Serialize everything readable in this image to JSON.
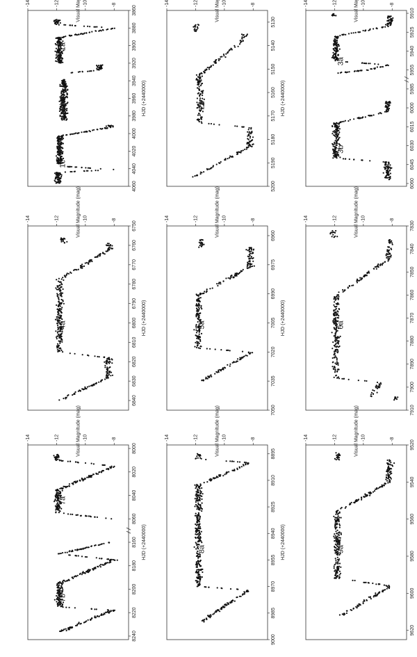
{
  "figure": {
    "rotation": "90deg-counterclockwise",
    "axis_title_x": "HJD  (+2440000)",
    "axis_title_y": "Visual Magnitude   (mag)"
  },
  "chart_data": [
    {
      "type": "scatter",
      "panel_row": 1,
      "panel_col": 1,
      "xlim": [
        3860,
        4060
      ],
      "ylim": [
        -14,
        -7
      ],
      "y_inverted": true,
      "x_ticks": [
        3860,
        3880,
        3900,
        3920,
        3940,
        3960,
        3980,
        4000,
        4020,
        4040,
        4060
      ],
      "y_ticks": [
        -8,
        -10,
        -12,
        -14
      ],
      "annotations": [
        "1a",
        "1b",
        "1c"
      ],
      "segments": [
        {
          "x_start": 3870,
          "x_end": 3876,
          "kind": "flat",
          "y": -12
        },
        {
          "x_start": 3876,
          "x_end": 3880,
          "kind": "rise",
          "y_from": -12,
          "y_to": -8
        },
        {
          "x_start": 3880,
          "x_end": 3891,
          "kind": "decline",
          "y_from": -8,
          "y_to": -11.8
        },
        {
          "x_start": 3891,
          "x_end": 3920,
          "kind": "flat",
          "y": -11.8
        },
        {
          "x_start": 3922,
          "x_end": 3928,
          "kind": "flat",
          "y": -9
        },
        {
          "x_start": 3928,
          "x_end": 3931,
          "kind": "decline",
          "y_from": -9,
          "y_to": -11.2
        },
        {
          "x_start": 3938,
          "x_end": 3985,
          "kind": "flat",
          "y": -11.5
        },
        {
          "x_start": 3990,
          "x_end": 3993,
          "kind": "flat",
          "y": -8.3
        },
        {
          "x_start": 3993,
          "x_end": 4003,
          "kind": "decline",
          "y_from": -8.3,
          "y_to": -11.8
        },
        {
          "x_start": 4003,
          "x_end": 4035,
          "kind": "flat",
          "y": -11.8
        },
        {
          "x_start": 4037,
          "x_end": 4041,
          "kind": "rise",
          "y_from": -11.8,
          "y_to": -8
        },
        {
          "x_start": 4041,
          "x_end": 4044,
          "kind": "decline",
          "y_from": -8,
          "y_to": -11.8
        },
        {
          "x_start": 4044,
          "x_end": 4057,
          "kind": "flat",
          "y": -11.9
        }
      ]
    },
    {
      "type": "scatter",
      "panel_row": 1,
      "panel_col": 2,
      "xlim": [
        5125,
        5200
      ],
      "ylim": [
        -14,
        -7
      ],
      "y_inverted": true,
      "x_ticks": [
        5130,
        5140,
        5150,
        5160,
        5170,
        5180,
        5190,
        5200
      ],
      "y_ticks": [
        -8,
        -10,
        -12,
        -14
      ],
      "annotations": [
        "2a"
      ],
      "segments": [
        {
          "x_start": 5131,
          "x_end": 5134,
          "kind": "flat",
          "y": -12
        },
        {
          "x_start": 5135,
          "x_end": 5137,
          "kind": "flat",
          "y": -8.6
        },
        {
          "x_start": 5137,
          "x_end": 5152,
          "kind": "decline",
          "y_from": -8.6,
          "y_to": -11.6
        },
        {
          "x_start": 5152,
          "x_end": 5173,
          "kind": "flat",
          "y": -11.7
        },
        {
          "x_start": 5173,
          "x_end": 5175,
          "kind": "rise",
          "y_from": -11.7,
          "y_to": -8.1
        },
        {
          "x_start": 5175,
          "x_end": 5183,
          "kind": "flat",
          "y": -8.2
        },
        {
          "x_start": 5183,
          "x_end": 5196,
          "kind": "decline",
          "y_from": -8.2,
          "y_to": -12.1
        }
      ]
    },
    {
      "type": "scatter",
      "panel_row": 1,
      "panel_col": 3,
      "xlim": [
        5905,
        6065
      ],
      "ylim": [
        -14,
        -7
      ],
      "y_inverted": true,
      "x_ticks": [
        5910,
        5925,
        5940,
        5955,
        5985,
        6000,
        6015,
        6030,
        6045,
        6060
      ],
      "x_tick_labels": [
        "5910",
        "5925",
        "5940",
        "5955",
        "5985",
        "6000",
        "6015",
        "6030",
        "6045",
        "6060"
      ],
      "y_ticks": [
        -8,
        -10,
        -12,
        -14
      ],
      "axis_break_between": [
        "5955",
        "5985"
      ],
      "annotations": [
        "3a",
        "3b"
      ],
      "segments": [
        {
          "x_start": 5910,
          "x_end": 5912,
          "kind": "flat",
          "y": -12
        },
        {
          "x_start": 5912,
          "x_end": 5920,
          "kind": "flat",
          "y": -8.2
        },
        {
          "x_start": 5920,
          "x_end": 5928,
          "kind": "decline",
          "y_from": -8.2,
          "y_to": -11.8
        },
        {
          "x_start": 5928,
          "x_end": 5948,
          "kind": "flat",
          "y": -11.9
        },
        {
          "x_start": 5948,
          "x_end": 5951,
          "kind": "rise",
          "y_from": -11.9,
          "y_to": -8.2
        },
        {
          "x_start": 5951,
          "x_end": 5960,
          "kind": "decline",
          "y_from": -8.2,
          "y_to": -11.8
        },
        {
          "x_start": 5995,
          "x_end": 6003,
          "kind": "flat",
          "y": -8.3
        },
        {
          "x_start": 6003,
          "x_end": 6012,
          "kind": "decline",
          "y_from": -8.3,
          "y_to": -11.8
        },
        {
          "x_start": 6012,
          "x_end": 6040,
          "kind": "flat",
          "y": -11.9
        },
        {
          "x_start": 6040,
          "x_end": 6043,
          "kind": "rise",
          "y_from": -11.9,
          "y_to": -8.3
        },
        {
          "x_start": 6043,
          "x_end": 6057,
          "kind": "flat",
          "y": -8.3
        }
      ]
    },
    {
      "type": "scatter",
      "panel_row": 2,
      "panel_col": 1,
      "xlim": [
        6750,
        6845
      ],
      "ylim": [
        -14,
        -7
      ],
      "y_inverted": true,
      "x_ticks": [
        6750,
        6760,
        6770,
        6780,
        6790,
        6800,
        6810,
        6820,
        6830,
        6840
      ],
      "y_ticks": [
        -8,
        -10,
        -12,
        -14
      ],
      "annotations": [
        "4a"
      ],
      "segments": [
        {
          "x_start": 6756,
          "x_end": 6759,
          "kind": "flat",
          "y": -11.5
        },
        {
          "x_start": 6759,
          "x_end": 6762,
          "kind": "flat",
          "y": -8.3
        },
        {
          "x_start": 6762,
          "x_end": 6777,
          "kind": "decline",
          "y_from": -8.3,
          "y_to": -11.6
        },
        {
          "x_start": 6777,
          "x_end": 6815,
          "kind": "flat",
          "y": -11.8
        },
        {
          "x_start": 6815,
          "x_end": 6818,
          "kind": "rise",
          "y_from": -11.8,
          "y_to": -8.4
        },
        {
          "x_start": 6818,
          "x_end": 6828,
          "kind": "flat",
          "y": -8.4
        },
        {
          "x_start": 6828,
          "x_end": 6840,
          "kind": "decline",
          "y_from": -8.4,
          "y_to": -11.8
        }
      ]
    },
    {
      "type": "scatter",
      "panel_row": 2,
      "panel_col": 2,
      "xlim": [
        6955,
        7050
      ],
      "ylim": [
        -14,
        -7
      ],
      "y_inverted": true,
      "x_ticks": [
        6960,
        6975,
        6990,
        7005,
        7020,
        7035,
        7050
      ],
      "y_ticks": [
        -8,
        -10,
        -12,
        -14
      ],
      "annotations": [
        "5a"
      ],
      "segments": [
        {
          "x_start": 6962,
          "x_end": 6966,
          "kind": "flat",
          "y": -11.6
        },
        {
          "x_start": 6966,
          "x_end": 6976,
          "kind": "flat",
          "y": -8.2
        },
        {
          "x_start": 6976,
          "x_end": 6990,
          "kind": "decline",
          "y_from": -8.2,
          "y_to": -11.6
        },
        {
          "x_start": 6990,
          "x_end": 7018,
          "kind": "flat",
          "y": -11.8
        },
        {
          "x_start": 7018,
          "x_end": 7020,
          "kind": "rise",
          "y_from": -11.8,
          "y_to": -8.1
        },
        {
          "x_start": 7020,
          "x_end": 7035,
          "kind": "decline",
          "y_from": -8.1,
          "y_to": -11.6
        }
      ]
    },
    {
      "type": "scatter",
      "panel_row": 2,
      "panel_col": 3,
      "xlim": [
        7830,
        7910
      ],
      "ylim": [
        -14,
        -7
      ],
      "y_inverted": true,
      "x_ticks": [
        7830,
        7840,
        7850,
        7860,
        7870,
        7880,
        7890,
        7900,
        7910
      ],
      "y_ticks": [
        -8,
        -10,
        -12,
        -14
      ],
      "annotations": [
        "6a"
      ],
      "segments": [
        {
          "x_start": 7832,
          "x_end": 7835,
          "kind": "flat",
          "y": -12.1
        },
        {
          "x_start": 7836,
          "x_end": 7844,
          "kind": "flat",
          "y": -8.2
        },
        {
          "x_start": 7844,
          "x_end": 7860,
          "kind": "decline",
          "y_from": -8.2,
          "y_to": -11.8
        },
        {
          "x_start": 7860,
          "x_end": 7896,
          "kind": "flat",
          "y": -11.9
        },
        {
          "x_start": 7896,
          "x_end": 7898,
          "kind": "rise",
          "y_from": -11.9,
          "y_to": -8.8
        },
        {
          "x_start": 7898,
          "x_end": 7904,
          "kind": "decline",
          "y_from": -8.8,
          "y_to": -9.5
        },
        {
          "x_start": 7904,
          "x_end": 7906,
          "kind": "flat",
          "y": -7.8
        }
      ]
    },
    {
      "type": "scatter",
      "panel_row": 3,
      "panel_col": 1,
      "xlim": [
        8000,
        8240
      ],
      "ylim": [
        -14,
        -7
      ],
      "y_inverted": true,
      "x_ticks": [
        8000,
        8020,
        8040,
        8060,
        8160,
        8180,
        8200,
        8220,
        8240
      ],
      "y_ticks": [
        -8,
        -10,
        -12,
        -14
      ],
      "axis_break_between": [
        "8060",
        "8160"
      ],
      "annotations": [
        "7a",
        "7b"
      ],
      "segments": [
        {
          "x_start": 8005,
          "x_end": 8010,
          "kind": "flat",
          "y": -12
        },
        {
          "x_start": 8010,
          "x_end": 8015,
          "kind": "rise",
          "y_from": -12,
          "y_to": -8
        },
        {
          "x_start": 8015,
          "x_end": 8035,
          "kind": "decline",
          "y_from": -8,
          "y_to": -11.8
        },
        {
          "x_start": 8035,
          "x_end": 8055,
          "kind": "flat",
          "y": -11.9
        },
        {
          "x_start": 8055,
          "x_end": 8060,
          "kind": "rise",
          "y_from": -11.9,
          "y_to": -8.2
        },
        {
          "x_start": 8160,
          "x_end": 8170,
          "kind": "decline",
          "y_from": -8.3,
          "y_to": -11.8
        },
        {
          "x_start": 8170,
          "x_end": 8175,
          "kind": "rise",
          "y_from": -11.8,
          "y_to": -8
        },
        {
          "x_start": 8175,
          "x_end": 8195,
          "kind": "decline",
          "y_from": -8,
          "y_to": -11.8
        },
        {
          "x_start": 8195,
          "x_end": 8215,
          "kind": "flat",
          "y": -11.8
        },
        {
          "x_start": 8215,
          "x_end": 8218,
          "kind": "rise",
          "y_from": -11.8,
          "y_to": -8.1
        },
        {
          "x_start": 8218,
          "x_end": 8236,
          "kind": "decline",
          "y_from": -8.1,
          "y_to": -11.7
        }
      ]
    },
    {
      "type": "scatter",
      "panel_row": 3,
      "panel_col": 2,
      "xlim": [
        8890,
        9000
      ],
      "ylim": [
        -14,
        -7
      ],
      "y_inverted": true,
      "x_ticks": [
        8895,
        8910,
        8925,
        8940,
        8955,
        8970,
        8985,
        9000
      ],
      "y_ticks": [
        -8,
        -10,
        -12,
        -14
      ],
      "annotations": [
        "8a"
      ],
      "segments": [
        {
          "x_start": 8895,
          "x_end": 8898,
          "kind": "flat",
          "y": -11.8
        },
        {
          "x_start": 8898,
          "x_end": 8900,
          "kind": "rise",
          "y_from": -11.8,
          "y_to": -8.2
        },
        {
          "x_start": 8900,
          "x_end": 8912,
          "kind": "decline",
          "y_from": -8.2,
          "y_to": -11.6
        },
        {
          "x_start": 8912,
          "x_end": 8970,
          "kind": "flat",
          "y": -11.8
        },
        {
          "x_start": 8970,
          "x_end": 8972,
          "kind": "rise",
          "y_from": -11.8,
          "y_to": -8.3
        },
        {
          "x_start": 8972,
          "x_end": 8990,
          "kind": "decline",
          "y_from": -8.3,
          "y_to": -11.6
        }
      ]
    },
    {
      "type": "scatter",
      "panel_row": 3,
      "panel_col": 3,
      "xlim": [
        9520,
        9625
      ],
      "ylim": [
        -14,
        -7
      ],
      "y_inverted": true,
      "x_ticks": [
        9520,
        9540,
        9560,
        9580,
        9600,
        9620
      ],
      "y_ticks": [
        -8,
        -10,
        -12,
        -14
      ],
      "annotations": [
        "9a"
      ],
      "segments": [
        {
          "x_start": 9524,
          "x_end": 9528,
          "kind": "flat",
          "y": -11.8
        },
        {
          "x_start": 9528,
          "x_end": 9540,
          "kind": "flat",
          "y": -8.2
        },
        {
          "x_start": 9540,
          "x_end": 9555,
          "kind": "decline",
          "y_from": -8.2,
          "y_to": -11.6
        },
        {
          "x_start": 9555,
          "x_end": 9592,
          "kind": "flat",
          "y": -11.8
        },
        {
          "x_start": 9592,
          "x_end": 9596,
          "kind": "rise",
          "y_from": -11.8,
          "y_to": -8.1
        },
        {
          "x_start": 9596,
          "x_end": 9612,
          "kind": "decline",
          "y_from": -8.1,
          "y_to": -11.5
        }
      ]
    }
  ]
}
